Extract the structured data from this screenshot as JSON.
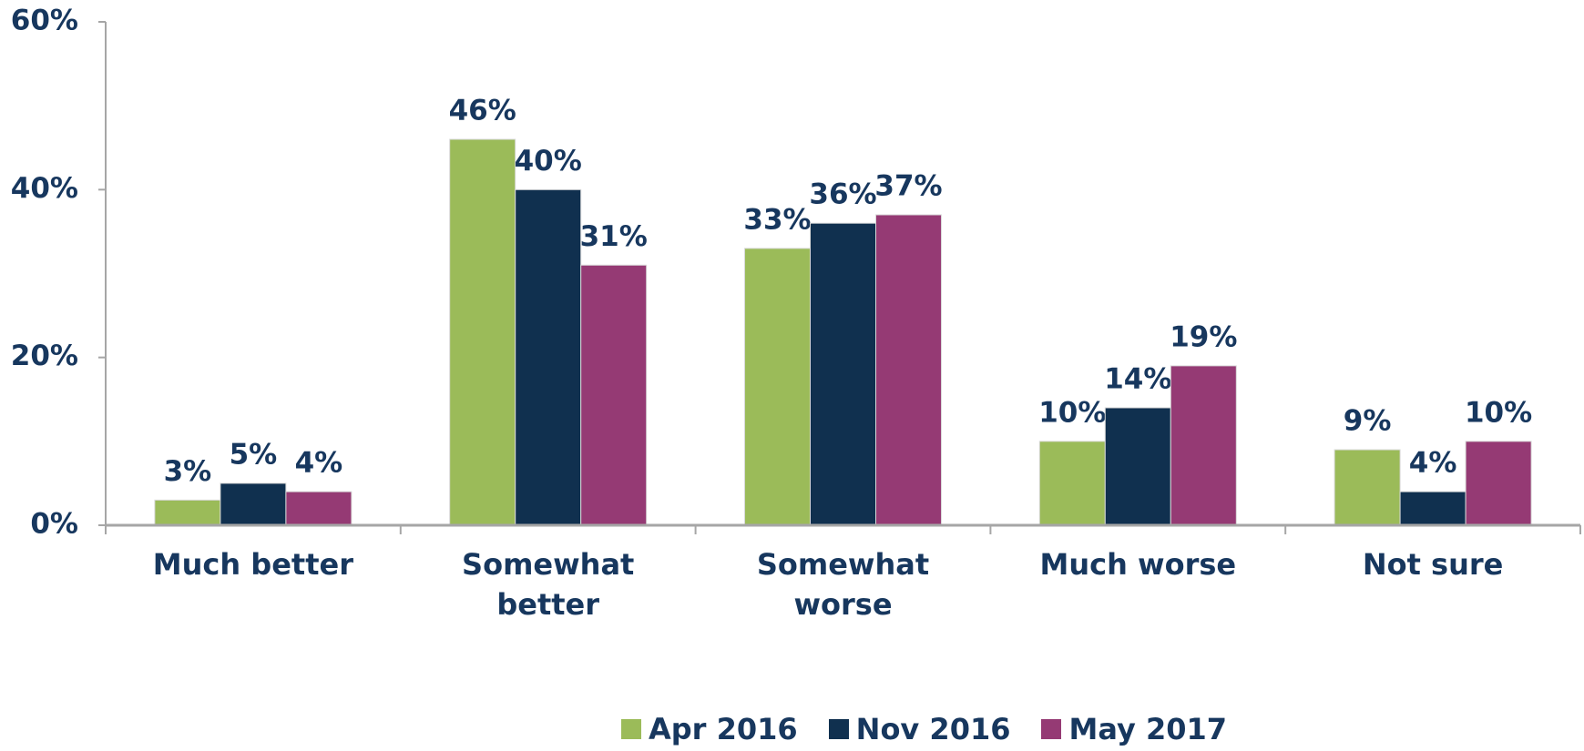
{
  "chart_data": {
    "type": "bar",
    "categories": [
      "Much better",
      "Somewhat better",
      "Somewhat worse",
      "Much worse",
      "Not sure"
    ],
    "series": [
      {
        "name": "Apr 2016",
        "color": "#9bbb59",
        "values": [
          3,
          46,
          33,
          10,
          9
        ],
        "value_labels": [
          "3%",
          "46%",
          "33%",
          "10%",
          "9%"
        ]
      },
      {
        "name": "Nov 2016",
        "color": "#10304f",
        "values": [
          5,
          40,
          36,
          14,
          4
        ],
        "value_labels": [
          "5%",
          "40%",
          "36%",
          "14%",
          "4%"
        ]
      },
      {
        "name": "May 2017",
        "color": "#953a74",
        "values": [
          4,
          31,
          37,
          19,
          10
        ],
        "value_labels": [
          "4%",
          "31%",
          "37%",
          "19%",
          "10%"
        ]
      }
    ],
    "ylim": [
      0,
      60
    ],
    "yticks": [
      {
        "value": 0,
        "label": "0%"
      },
      {
        "value": 20,
        "label": "20%"
      },
      {
        "value": 40,
        "label": "40%"
      },
      {
        "value": 60,
        "label": "60%"
      }
    ],
    "grid": false,
    "legend": "bottom"
  }
}
